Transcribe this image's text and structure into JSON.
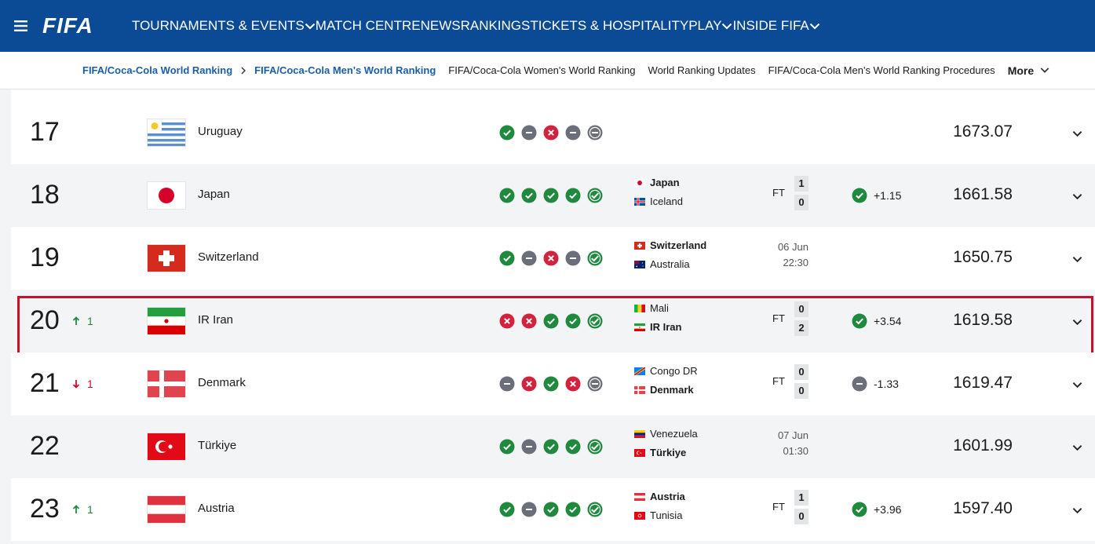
{
  "nav": {
    "logo": "FIFA",
    "items": [
      {
        "label": "TOURNAMENTS & EVENTS",
        "dropdown": true
      },
      {
        "label": "MATCH CENTRE",
        "dropdown": false
      },
      {
        "label": "NEWS",
        "dropdown": false
      },
      {
        "label": "RANKINGS",
        "dropdown": false
      },
      {
        "label": "TICKETS & HOSPITALITY",
        "dropdown": false
      },
      {
        "label": "PLAY",
        "dropdown": true
      },
      {
        "label": "INSIDE FIFA",
        "dropdown": true
      }
    ]
  },
  "breadcrumb": {
    "trail": [
      "FIFA/Coca-Cola World Ranking",
      "FIFA/Coca-Cola Men's World Ranking"
    ],
    "links": [
      "FIFA/Coca-Cola Women's World Ranking",
      "World Ranking Updates",
      "FIFA/Coca-Cola Men's World Ranking Procedures"
    ],
    "more": "More"
  },
  "rows": [
    {
      "rank": "17",
      "change": null,
      "team": "Uruguay",
      "form": [
        "W",
        "D",
        "L",
        "D",
        "D"
      ],
      "match": null,
      "points": "1673.07"
    },
    {
      "rank": "18",
      "change": null,
      "team": "Japan",
      "form": [
        "W",
        "W",
        "W",
        "W",
        "W"
      ],
      "match": {
        "home": "Japan",
        "away": "Iceland",
        "status": "FT",
        "home_score": "1",
        "away_score": "0",
        "result": "W",
        "points_change": "+1.15"
      },
      "points": "1661.58"
    },
    {
      "rank": "19",
      "change": null,
      "team": "Switzerland",
      "form": [
        "W",
        "D",
        "L",
        "D",
        "W"
      ],
      "match": {
        "home": "Switzerland",
        "away": "Australia",
        "date": "06 Jun",
        "time": "22:30"
      },
      "points": "1650.75"
    },
    {
      "rank": "20",
      "change": {
        "value": "1",
        "direction": "up"
      },
      "team": "IR Iran",
      "form": [
        "L",
        "L",
        "W",
        "W",
        "W"
      ],
      "highlighted": true,
      "match": {
        "home": "Mali",
        "away": "IR Iran",
        "status": "FT",
        "home_score": "0",
        "away_score": "2",
        "result": "W",
        "points_change": "+3.54"
      },
      "points": "1619.58"
    },
    {
      "rank": "21",
      "change": {
        "value": "1",
        "direction": "down"
      },
      "team": "Denmark",
      "form": [
        "D",
        "L",
        "W",
        "L",
        "D"
      ],
      "match": {
        "home": "Congo DR",
        "away": "Denmark",
        "status": "FT",
        "home_score": "0",
        "away_score": "0",
        "result": "D",
        "points_change": "-1.33"
      },
      "points": "1619.47"
    },
    {
      "rank": "22",
      "change": null,
      "team": "Türkiye",
      "form": [
        "W",
        "D",
        "W",
        "W",
        "W"
      ],
      "match": {
        "home": "Venezuela",
        "away": "Türkiye",
        "date": "07 Jun",
        "time": "01:30"
      },
      "points": "1601.99"
    },
    {
      "rank": "23",
      "change": {
        "value": "1",
        "direction": "up"
      },
      "team": "Austria",
      "form": [
        "W",
        "D",
        "W",
        "W",
        "W"
      ],
      "match": {
        "home": "Austria",
        "away": "Tunisia",
        "status": "FT",
        "home_score": "1",
        "away_score": "0",
        "result": "W",
        "points_change": "+3.96"
      },
      "points": "1597.40"
    }
  ]
}
